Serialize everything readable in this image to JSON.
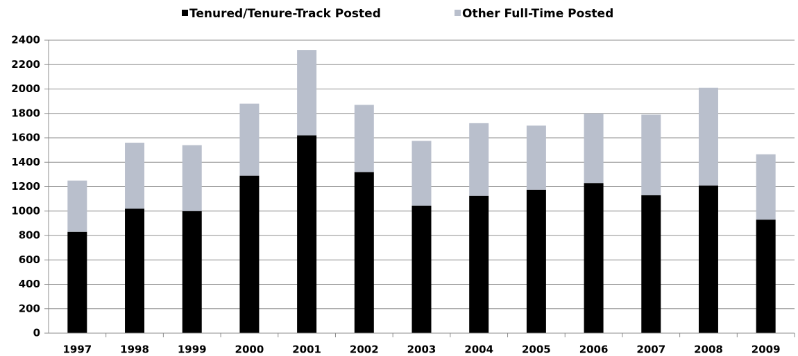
{
  "chart_data": {
    "type": "stacked_bar",
    "categories": [
      "1997",
      "1998",
      "1999",
      "2000",
      "2001",
      "2002",
      "2003",
      "2004",
      "2005",
      "2006",
      "2007",
      "2008",
      "2009"
    ],
    "series": [
      {
        "name": "Tenured/Tenure-Track Posted",
        "color": "#000000",
        "values": [
          830,
          1020,
          1000,
          1290,
          1620,
          1320,
          1045,
          1125,
          1175,
          1230,
          1130,
          1210,
          930
        ]
      },
      {
        "name": "Other Full-Time Posted",
        "color": "#b9bfcc",
        "values": [
          420,
          540,
          540,
          590,
          700,
          550,
          530,
          595,
          525,
          570,
          660,
          800,
          535
        ]
      }
    ],
    "ylim": [
      0,
      2400
    ],
    "yticks": [
      0,
      200,
      400,
      600,
      800,
      1000,
      1200,
      1400,
      1600,
      1800,
      2000,
      2200,
      2400
    ],
    "grid": true,
    "legend": "top"
  }
}
